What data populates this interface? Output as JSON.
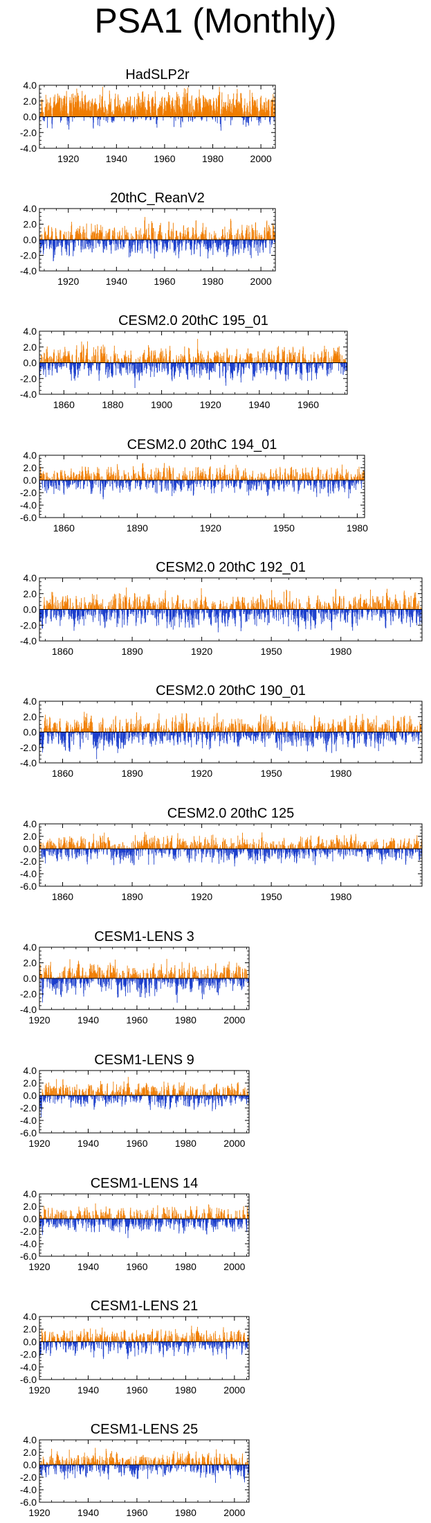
{
  "title": "PSA1 (Monthly)",
  "colors": {
    "positive": "#f07d00",
    "negative": "#1c3fcc",
    "zero_line": "#000000",
    "trace": "#bfbfbf"
  },
  "chart_data": [
    {
      "type": "bar",
      "title": "HadSLP2r",
      "x_range": [
        1908,
        2006
      ],
      "ylim": [
        -4,
        4
      ],
      "yticks": [
        "4.0",
        "2.0",
        "0.0",
        "-2.0",
        "-4.0"
      ],
      "xticks": [
        1920,
        1940,
        1960,
        1980,
        2000
      ],
      "x_tick_labels": [
        "1920",
        "1940",
        "1960",
        "1980",
        "2000"
      ],
      "seed": 11,
      "bias": 0.45,
      "amp": 1.05
    },
    {
      "type": "bar",
      "title": "20thC_ReanV2",
      "x_range": [
        1908,
        2006
      ],
      "ylim": [
        -4,
        4
      ],
      "yticks": [
        "4.0",
        "2.0",
        "0.0",
        "-2.0",
        "-4.0"
      ],
      "xticks": [
        1920,
        1940,
        1960,
        1980,
        2000
      ],
      "x_tick_labels": [
        "1920",
        "1940",
        "1960",
        "1980",
        "2000"
      ],
      "seed": 23,
      "bias": 0.0,
      "amp": 1.0
    },
    {
      "type": "bar",
      "title": "CESM2.0 20thC 195_01",
      "x_range": [
        1850,
        1976
      ],
      "ylim": [
        -4,
        4
      ],
      "yticks": [
        "4.0",
        "2.0",
        "0.0",
        "-2.0",
        "-4.0"
      ],
      "xticks": [
        1860,
        1880,
        1900,
        1920,
        1940,
        1960
      ],
      "x_tick_labels": [
        "1860",
        "1880",
        "1900",
        "1920",
        "1940",
        "1960"
      ],
      "seed": 37,
      "bias": 0.0,
      "amp": 1.0
    },
    {
      "type": "bar",
      "title": "CESM2.0 20thC 194_01",
      "x_range": [
        1850,
        1983
      ],
      "ylim": [
        -6,
        4
      ],
      "yticks": [
        "4.0",
        "2.0",
        "0.0",
        "-2.0",
        "-4.0",
        "-6.0"
      ],
      "xticks": [
        1860,
        1890,
        1920,
        1950,
        1980
      ],
      "x_tick_labels": [
        "1860",
        "1890",
        "1920",
        "1950",
        "1980"
      ],
      "seed": 41,
      "bias": 0.0,
      "amp": 1.0
    },
    {
      "type": "bar",
      "title": "CESM2.0 20thC 192_01",
      "x_range": [
        1850,
        2015
      ],
      "ylim": [
        -4,
        4
      ],
      "yticks": [
        "4.0",
        "2.0",
        "0.0",
        "-2.0",
        "-4.0"
      ],
      "xticks": [
        1860,
        1890,
        1920,
        1950,
        1980
      ],
      "x_tick_labels": [
        "1860",
        "1890",
        "1920",
        "1950",
        "1980"
      ],
      "seed": 53,
      "bias": 0.0,
      "amp": 1.0
    },
    {
      "type": "bar",
      "title": "CESM2.0 20thC 190_01",
      "x_range": [
        1850,
        2015
      ],
      "ylim": [
        -4,
        4
      ],
      "yticks": [
        "4.0",
        "2.0",
        "0.0",
        "-2.0",
        "-4.0"
      ],
      "xticks": [
        1860,
        1890,
        1920,
        1950,
        1980
      ],
      "x_tick_labels": [
        "1860",
        "1890",
        "1920",
        "1950",
        "1980"
      ],
      "seed": 67,
      "bias": 0.0,
      "amp": 1.0
    },
    {
      "type": "bar",
      "title": "CESM2.0 20thC 125",
      "x_range": [
        1850,
        2015
      ],
      "ylim": [
        -6,
        4
      ],
      "yticks": [
        "4.0",
        "2.0",
        "0.0",
        "-2.0",
        "-4.0",
        "-6.0"
      ],
      "xticks": [
        1860,
        1890,
        1920,
        1950,
        1980
      ],
      "x_tick_labels": [
        "1860",
        "1890",
        "1920",
        "1950",
        "1980"
      ],
      "seed": 71,
      "bias": 0.0,
      "amp": 1.0
    },
    {
      "type": "bar",
      "title": "CESM1-LENS 3",
      "x_range": [
        1920,
        2006
      ],
      "ylim": [
        -4,
        4
      ],
      "yticks": [
        "4.0",
        "2.0",
        "0.0",
        "-2.0",
        "-4.0"
      ],
      "xticks": [
        1920,
        1940,
        1960,
        1980,
        2000
      ],
      "x_tick_labels": [
        "1920",
        "1940",
        "1960",
        "1980",
        "2000"
      ],
      "seed": 83,
      "bias": 0.0,
      "amp": 1.0
    },
    {
      "type": "bar",
      "title": "CESM1-LENS 9",
      "x_range": [
        1920,
        2006
      ],
      "ylim": [
        -6,
        4
      ],
      "yticks": [
        "4.0",
        "2.0",
        "0.0",
        "-2.0",
        "-4.0",
        "-6.0"
      ],
      "xticks": [
        1920,
        1940,
        1960,
        1980,
        2000
      ],
      "x_tick_labels": [
        "1920",
        "1940",
        "1960",
        "1980",
        "2000"
      ],
      "seed": 97,
      "bias": 0.0,
      "amp": 1.0
    },
    {
      "type": "bar",
      "title": "CESM1-LENS 14",
      "x_range": [
        1920,
        2006
      ],
      "ylim": [
        -6,
        4
      ],
      "yticks": [
        "4.0",
        "2.0",
        "0.0",
        "-2.0",
        "-4.0",
        "-6.0"
      ],
      "xticks": [
        1920,
        1940,
        1960,
        1980,
        2000
      ],
      "x_tick_labels": [
        "1920",
        "1940",
        "1960",
        "1980",
        "2000"
      ],
      "seed": 101,
      "bias": 0.0,
      "amp": 1.0
    },
    {
      "type": "bar",
      "title": "CESM1-LENS 21",
      "x_range": [
        1920,
        2006
      ],
      "ylim": [
        -6,
        4
      ],
      "yticks": [
        "4.0",
        "2.0",
        "0.0",
        "-2.0",
        "-4.0",
        "-6.0"
      ],
      "xticks": [
        1920,
        1940,
        1960,
        1980,
        2000
      ],
      "x_tick_labels": [
        "1920",
        "1940",
        "1960",
        "1980",
        "2000"
      ],
      "seed": 113,
      "bias": 0.0,
      "amp": 1.0
    },
    {
      "type": "bar",
      "title": "CESM1-LENS 25",
      "x_range": [
        1920,
        2006
      ],
      "ylim": [
        -6,
        4
      ],
      "yticks": [
        "4.0",
        "2.0",
        "0.0",
        "-2.0",
        "-4.0",
        "-6.0"
      ],
      "xticks": [
        1920,
        1940,
        1960,
        1980,
        2000
      ],
      "x_tick_labels": [
        "1920",
        "1940",
        "1960",
        "1980",
        "2000"
      ],
      "seed": 127,
      "bias": 0.0,
      "amp": 1.0
    }
  ]
}
